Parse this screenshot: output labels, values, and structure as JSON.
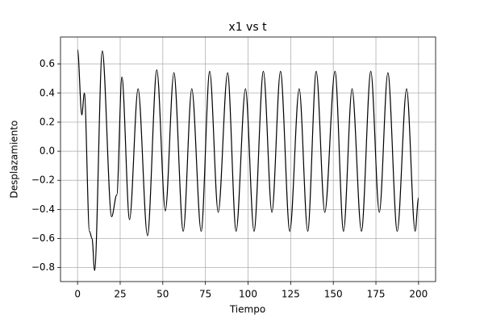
{
  "chart_data": {
    "type": "line",
    "title": "x1 vs t",
    "x_label": "Tiempo",
    "y_label": "Desplazamiento",
    "xlim": [
      -10,
      210
    ],
    "ylim": [
      -0.896,
      0.786
    ],
    "xticks": [
      0,
      25,
      50,
      75,
      100,
      125,
      150,
      175,
      200
    ],
    "yticks": [
      {
        "value": -0.8,
        "label": "−0.8"
      },
      {
        "value": -0.6,
        "label": "−0.6"
      },
      {
        "value": -0.4,
        "label": "−0.4"
      },
      {
        "value": -0.2,
        "label": "−0.2"
      },
      {
        "value": 0,
        "label": "0.0"
      },
      0.2,
      0.4,
      0.6
    ],
    "grid": true,
    "series": [
      {
        "color": "#000000",
        "x": [
          0,
          2.5,
          4,
          7,
          8.5,
          10,
          14.5,
          20,
          23,
          26,
          30.5,
          35.5,
          41,
          46.5,
          51.5,
          56.5,
          62,
          67,
          72.5,
          77.5,
          82.5,
          88,
          93,
          98.5,
          103.5,
          109,
          114,
          119,
          124.5,
          130,
          135,
          140,
          145,
          151,
          156,
          161,
          166.5,
          172,
          177,
          182,
          187.5,
          193,
          198,
          200
        ],
        "values": [
          0.7,
          0.25,
          0.4,
          -0.55,
          -0.6,
          -0.82,
          0.69,
          -0.45,
          -0.3,
          0.51,
          -0.47,
          0.43,
          -0.58,
          0.56,
          -0.41,
          0.54,
          -0.55,
          0.43,
          -0.55,
          0.55,
          -0.42,
          0.54,
          -0.55,
          0.43,
          -0.55,
          0.55,
          -0.42,
          0.55,
          -0.55,
          0.43,
          -0.55,
          0.55,
          -0.42,
          0.55,
          -0.55,
          0.43,
          -0.55,
          0.55,
          -0.42,
          0.54,
          -0.55,
          0.43,
          -0.55,
          -0.32
        ]
      }
    ]
  }
}
